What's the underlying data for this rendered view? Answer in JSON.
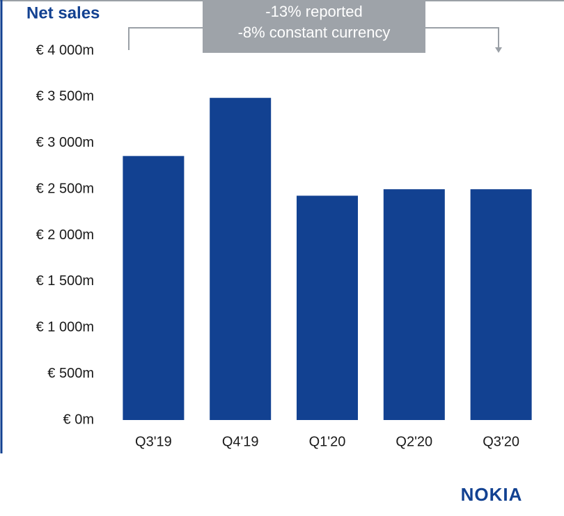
{
  "chart_data": {
    "type": "bar",
    "title": "Net sales",
    "annotations": [
      "-13% reported",
      "-8% constant currency"
    ],
    "logo": "NOKIA",
    "categories": [
      "Q3'19",
      "Q4'19",
      "Q1'20",
      "Q2'20",
      "Q3'20"
    ],
    "values": [
      2860,
      3490,
      2430,
      2500,
      2500
    ],
    "color": "#124191",
    "ylim": [
      0,
      4000
    ],
    "yticks": [
      {
        "value": 0,
        "label": "€  0m"
      },
      {
        "value": 500,
        "label": "€  500m"
      },
      {
        "value": 1000,
        "label": "€ 1 000m"
      },
      {
        "value": 1500,
        "label": "€ 1 500m"
      },
      {
        "value": 2000,
        "label": "€ 2 000m"
      },
      {
        "value": 2500,
        "label": "€ 2 500m"
      },
      {
        "value": 3000,
        "label": "€ 3 000m"
      },
      {
        "value": 3500,
        "label": "€ 3 500m"
      },
      {
        "value": 4000,
        "label": "€ 4 000m"
      }
    ],
    "grid": false
  }
}
